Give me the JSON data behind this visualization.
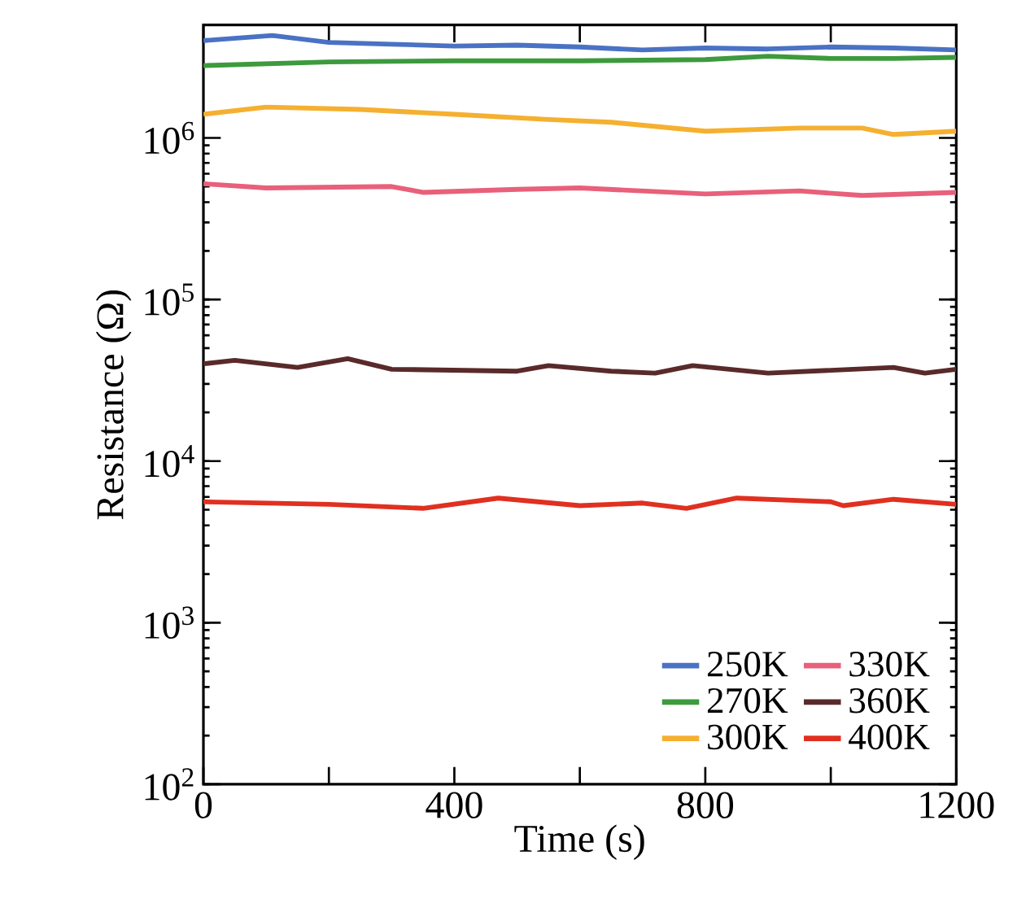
{
  "chart_data": {
    "type": "line",
    "xlabel": "Time (s)",
    "ylabel": "Resistance (Ω)",
    "log": "y",
    "grid": false,
    "legend": "bottom right",
    "line_style": "solid",
    "marker": "none",
    "xlim": [
      0,
      1200
    ],
    "ylim": [
      100,
      5000000
    ],
    "xticks": [
      0,
      {
        "value": 200,
        "label": null
      },
      400,
      {
        "value": 600,
        "label": null
      },
      800,
      {
        "value": 1000,
        "label": null
      },
      1200
    ],
    "yticks": [
      {
        "value": 100,
        "label": "10$^{2}$"
      },
      {
        "value": 1000,
        "label": "10$^{3}$"
      },
      {
        "value": 10000,
        "label": "10$^{4}$"
      },
      {
        "value": 100000,
        "label": "10$^{5}$"
      },
      {
        "value": 1000000,
        "label": "10$^{6}$"
      }
    ],
    "series": [
      {
        "name": "250K",
        "color": "#4a72c4",
        "x": [
          0,
          110,
          200,
          300,
          400,
          500,
          600,
          700,
          800,
          900,
          1000,
          1100,
          1200
        ],
        "values": [
          4000000,
          4300000,
          3900000,
          3800000,
          3700000,
          3750000,
          3650000,
          3500000,
          3600000,
          3550000,
          3650000,
          3600000,
          3500000
        ]
      },
      {
        "name": "270K",
        "color": "#3d9a3d",
        "x": [
          0,
          200,
          400,
          600,
          800,
          900,
          1000,
          1100,
          1200
        ],
        "values": [
          2800000,
          2950000,
          3000000,
          3000000,
          3050000,
          3200000,
          3100000,
          3100000,
          3150000
        ]
      },
      {
        "name": "300K",
        "color": "#f5b030",
        "x": [
          0,
          100,
          250,
          400,
          550,
          650,
          800,
          950,
          1050,
          1100,
          1200
        ],
        "values": [
          1400000,
          1550000,
          1500000,
          1400000,
          1300000,
          1250000,
          1100000,
          1150000,
          1150000,
          1050000,
          1100000
        ]
      },
      {
        "name": "330K",
        "color": "#e8607a",
        "x": [
          0,
          100,
          300,
          350,
          500,
          600,
          800,
          950,
          1050,
          1200
        ],
        "values": [
          520000,
          490000,
          500000,
          460000,
          480000,
          490000,
          450000,
          470000,
          440000,
          460000
        ]
      },
      {
        "name": "360K",
        "color": "#5a2a2a",
        "x": [
          0,
          50,
          150,
          230,
          300,
          500,
          550,
          650,
          720,
          780,
          900,
          1100,
          1150,
          1200
        ],
        "values": [
          40000,
          42000,
          38000,
          43000,
          37000,
          36000,
          39000,
          36000,
          35000,
          39000,
          35000,
          38000,
          35000,
          37000
        ]
      },
      {
        "name": "400K",
        "color": "#e03020",
        "x": [
          0,
          200,
          350,
          470,
          600,
          700,
          770,
          850,
          1000,
          1020,
          1100,
          1200
        ],
        "values": [
          5600,
          5400,
          5100,
          5900,
          5300,
          5500,
          5100,
          5900,
          5600,
          5300,
          5800,
          5400
        ]
      }
    ]
  }
}
